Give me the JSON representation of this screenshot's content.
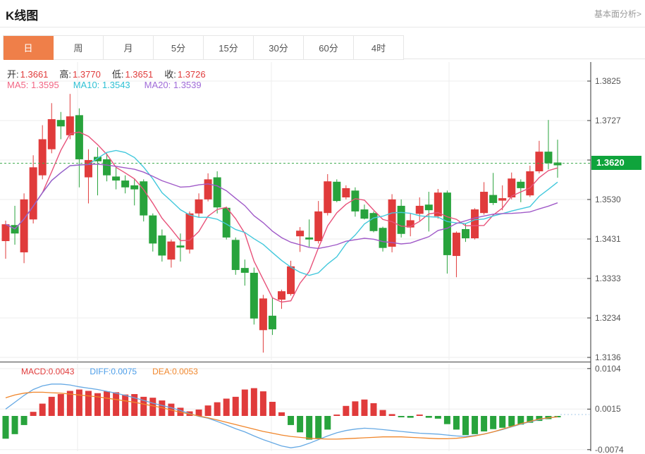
{
  "header": {
    "title": "K线图",
    "link": "基本面分析>"
  },
  "tabs": {
    "items": [
      "日",
      "周",
      "月",
      "5分",
      "15分",
      "30分",
      "60分",
      "4时"
    ],
    "active_index": 0
  },
  "ohlc": {
    "open_label": "开",
    "open": "1.3661",
    "high_label": "高",
    "high": "1.3770",
    "low_label": "低",
    "low": "1.3651",
    "close_label": "收",
    "close": "1.3726"
  },
  "ma_legend": {
    "ma5": "MA5: 1.3595",
    "ma10": "MA10: 1.3543",
    "ma20": "MA20: 1.3539"
  },
  "macd_legend": {
    "macd": "MACD:0.0043",
    "diff": "DIFF:0.0075",
    "dea": "DEA:0.0053"
  },
  "price_badge": "1.3620",
  "colors": {
    "up": "#e03b3b",
    "down": "#28a33c",
    "ma5": "#e8527a",
    "ma10": "#42c8dc",
    "ma20": "#a05ac8",
    "ma5_text": "#f26684",
    "ma10_text": "#2fc1d4",
    "ma20_text": "#a06cd8",
    "value_red": "#e03b3b",
    "diff_line": "#66a9e4",
    "dea_line": "#f0862b",
    "diff_text": "#4a9ce8",
    "dea_text": "#f0862b",
    "badge_green": "#0fa43c",
    "price_line": "#3aaa4a",
    "axis": "#333333",
    "grid": "#ededed",
    "tick_text": "#555555"
  },
  "chart_data": {
    "type": "candlestick+macd",
    "main": {
      "y_ticks": [
        "1.3825",
        "1.3727",
        "1.3629",
        "1.3530",
        "1.3431",
        "1.3333",
        "1.3234",
        "1.3136"
      ],
      "y_range": [
        1.3136,
        1.3825
      ],
      "current_price": 1.362,
      "ma_periods": [
        5,
        10,
        20
      ],
      "candles": [
        [
          1.3426,
          1.3477,
          1.3382,
          1.3468
        ],
        [
          1.3466,
          1.3514,
          1.3417,
          1.3445
        ],
        [
          1.3398,
          1.3545,
          1.3371,
          1.353
        ],
        [
          1.348,
          1.364,
          1.347,
          1.361
        ],
        [
          1.359,
          1.3715,
          1.358,
          1.368
        ],
        [
          1.3655,
          1.377,
          1.3645,
          1.373
        ],
        [
          1.3728,
          1.3748,
          1.368,
          1.3712
        ],
        [
          1.369,
          1.3793,
          1.368,
          1.3737
        ],
        [
          1.374,
          1.3757,
          1.356,
          1.363
        ],
        [
          1.3585,
          1.3655,
          1.352,
          1.3628
        ],
        [
          1.3636,
          1.366,
          1.354,
          1.3625
        ],
        [
          1.363,
          1.3645,
          1.3575,
          1.359
        ],
        [
          1.3587,
          1.361,
          1.3555,
          1.3577
        ],
        [
          1.3577,
          1.359,
          1.3545,
          1.356
        ],
        [
          1.3565,
          1.358,
          1.3515,
          1.3555
        ],
        [
          1.3575,
          1.358,
          1.3475,
          1.349
        ],
        [
          1.349,
          1.3495,
          1.34,
          1.342
        ],
        [
          1.344,
          1.3455,
          1.3375,
          1.339
        ],
        [
          1.338,
          1.343,
          1.336,
          1.3425
        ],
        [
          1.3415,
          1.3445,
          1.3375,
          1.341
        ],
        [
          1.3405,
          1.35,
          1.3395,
          1.3495
        ],
        [
          1.3495,
          1.3545,
          1.3485,
          1.353
        ],
        [
          1.353,
          1.3595,
          1.3525,
          1.358
        ],
        [
          1.3585,
          1.36,
          1.3495,
          1.351
        ],
        [
          1.3509,
          1.3512,
          1.343,
          1.3435
        ],
        [
          1.3429,
          1.3435,
          1.3342,
          1.3354
        ],
        [
          1.3359,
          1.338,
          1.3315,
          1.3347
        ],
        [
          1.3347,
          1.336,
          1.3218,
          1.3233
        ],
        [
          1.3204,
          1.3292,
          1.3148,
          1.3283
        ],
        [
          1.324,
          1.3284,
          1.3192,
          1.3206
        ],
        [
          1.328,
          1.3305,
          1.3257,
          1.3301
        ],
        [
          1.3294,
          1.3377,
          1.329,
          1.3363
        ],
        [
          1.3438,
          1.3461,
          1.3399,
          1.3452
        ],
        [
          1.3435,
          1.348,
          1.3412,
          1.343
        ],
        [
          1.3426,
          1.3526,
          1.342,
          1.35
        ],
        [
          1.3496,
          1.3593,
          1.349,
          1.3575
        ],
        [
          1.3574,
          1.358,
          1.3523,
          1.3526
        ],
        [
          1.3535,
          1.3565,
          1.353,
          1.3558
        ],
        [
          1.3552,
          1.356,
          1.3487,
          1.35
        ],
        [
          1.3505,
          1.3517,
          1.348,
          1.3482
        ],
        [
          1.3496,
          1.35,
          1.3448,
          1.3451
        ],
        [
          1.3459,
          1.3462,
          1.34,
          1.3409
        ],
        [
          1.3412,
          1.3543,
          1.3398,
          1.353
        ],
        [
          1.3514,
          1.353,
          1.3435,
          1.3444
        ],
        [
          1.346,
          1.3495,
          1.3438,
          1.3478
        ],
        [
          1.3494,
          1.3535,
          1.3477,
          1.3514
        ],
        [
          1.3517,
          1.3549,
          1.345,
          1.3503
        ],
        [
          1.3488,
          1.3556,
          1.3482,
          1.3547
        ],
        [
          1.3547,
          1.3552,
          1.3345,
          1.3391
        ],
        [
          1.3389,
          1.345,
          1.3336,
          1.3447
        ],
        [
          1.3456,
          1.347,
          1.3424,
          1.3433
        ],
        [
          1.3433,
          1.3508,
          1.343,
          1.3505
        ],
        [
          1.3496,
          1.3573,
          1.3492,
          1.3549
        ],
        [
          1.3541,
          1.3596,
          1.3516,
          1.3521
        ],
        [
          1.3527,
          1.3565,
          1.3503,
          1.3533
        ],
        [
          1.3535,
          1.3597,
          1.353,
          1.3582
        ],
        [
          1.3574,
          1.358,
          1.3523,
          1.3558
        ],
        [
          1.354,
          1.3614,
          1.3536,
          1.36
        ],
        [
          1.36,
          1.3676,
          1.3595,
          1.3649
        ],
        [
          1.3649,
          1.3728,
          1.3605,
          1.362
        ],
        [
          1.3622,
          1.3679,
          1.3584,
          1.3615
        ]
      ]
    },
    "macd": {
      "y_ticks": [
        "0.0104",
        "0.0015",
        "-0.0074"
      ],
      "histogram": [
        -0.005,
        -0.004,
        -0.002,
        0.0009,
        0.0027,
        0.0042,
        0.0048,
        0.0055,
        0.0058,
        0.0055,
        0.005,
        0.0054,
        0.0052,
        0.0047,
        0.0048,
        0.0042,
        0.004,
        0.0034,
        0.0027,
        0.0018,
        0.001,
        0.0014,
        0.0023,
        0.003,
        0.0038,
        0.0042,
        0.0058,
        0.0061,
        0.0054,
        0.0031,
        0.0008,
        -0.002,
        -0.0036,
        -0.0052,
        -0.0049,
        -0.003,
        0.0003,
        0.0022,
        0.0032,
        0.0036,
        0.0028,
        0.0013,
        0.0004,
        -0.0003,
        -0.0004,
        0.0003,
        -0.0004,
        -0.0006,
        -0.0018,
        -0.003,
        -0.0042,
        -0.004,
        -0.0034,
        -0.0029,
        -0.0026,
        -0.0023,
        -0.0019,
        -0.0015,
        -0.0011,
        -0.0007,
        -0.0003
      ],
      "diff": [
        0.0015,
        0.003,
        0.0045,
        0.0058,
        0.0066,
        0.007,
        0.007,
        0.0068,
        0.0064,
        0.0061,
        0.0058,
        0.0054,
        0.005,
        0.0045,
        0.004,
        0.0034,
        0.0028,
        0.0023,
        0.0018,
        0.0012,
        0.0005,
        -0.0001,
        -0.0005,
        -0.0012,
        -0.002,
        -0.0028,
        -0.0035,
        -0.0044,
        -0.0052,
        -0.0059,
        -0.0066,
        -0.007,
        -0.0067,
        -0.006,
        -0.0052,
        -0.0044,
        -0.0037,
        -0.0032,
        -0.0029,
        -0.0027,
        -0.0028,
        -0.003,
        -0.0032,
        -0.0034,
        -0.0036,
        -0.0038,
        -0.0039,
        -0.004,
        -0.0042,
        -0.0044,
        -0.0045,
        -0.0043,
        -0.004,
        -0.0035,
        -0.003,
        -0.0024,
        -0.0018,
        -0.0013,
        -0.0008,
        -0.0004,
        -0.0002
      ],
      "dea": [
        0.004,
        0.0046,
        0.005,
        0.0052,
        0.0052,
        0.0051,
        0.005,
        0.0048,
        0.0046,
        0.0044,
        0.0042,
        0.0039,
        0.0036,
        0.0033,
        0.003,
        0.0026,
        0.0022,
        0.0018,
        0.0013,
        0.0008,
        0.0004,
        0.0,
        -0.0004,
        -0.0009,
        -0.0014,
        -0.0019,
        -0.0024,
        -0.0029,
        -0.0034,
        -0.0038,
        -0.0042,
        -0.0045,
        -0.0047,
        -0.0049,
        -0.005,
        -0.0051,
        -0.0051,
        -0.005,
        -0.0049,
        -0.0048,
        -0.0047,
        -0.0046,
        -0.0046,
        -0.0046,
        -0.0047,
        -0.0048,
        -0.0049,
        -0.005,
        -0.005,
        -0.0049,
        -0.0047,
        -0.0044,
        -0.004,
        -0.0035,
        -0.0029,
        -0.0023,
        -0.0017,
        -0.0012,
        -0.0007,
        -0.0004,
        -0.0002
      ]
    }
  }
}
